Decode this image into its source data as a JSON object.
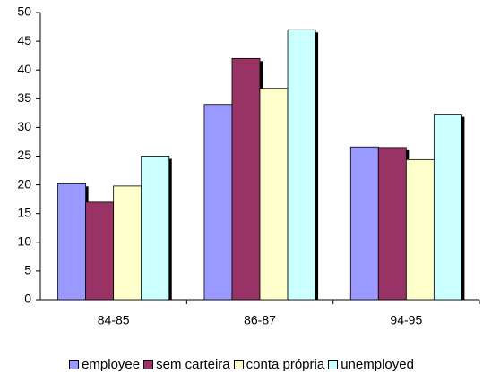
{
  "chart_data": {
    "type": "bar",
    "categories": [
      "84-85",
      "86-87",
      "94-95"
    ],
    "series": [
      {
        "name": "employee",
        "color": "#9999ff",
        "values": [
          20.2,
          34,
          26.6
        ]
      },
      {
        "name": "sem carteira",
        "color": "#993366",
        "values": [
          17,
          42,
          26.5
        ]
      },
      {
        "name": "conta própria",
        "color": "#ffffcc",
        "values": [
          19.8,
          36.8,
          24.4
        ]
      },
      {
        "name": "unemployed",
        "color": "#ccffff",
        "values": [
          25,
          47,
          32.3
        ]
      }
    ],
    "ylim": [
      0,
      50
    ],
    "yticks": [
      0,
      5,
      10,
      15,
      20,
      25,
      30,
      35,
      40,
      45,
      50
    ],
    "grid": false,
    "legend": "bottom"
  }
}
